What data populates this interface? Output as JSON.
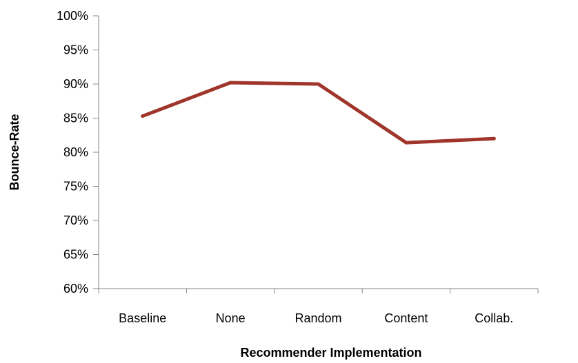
{
  "chart_data": {
    "type": "line",
    "title": "",
    "xlabel": "Recommender Implementation",
    "ylabel": "Bounce-Rate",
    "categories": [
      "Baseline",
      "None",
      "Random",
      "Content",
      "Collab."
    ],
    "series": [
      {
        "values": [
          0.853,
          0.902,
          0.9,
          0.814,
          0.82
        ],
        "color": "#A0362B"
      }
    ],
    "ylim": [
      0.6,
      1.0
    ],
    "yticks": [
      0.6,
      0.65,
      0.7,
      0.75,
      0.8,
      0.85,
      0.9,
      0.95,
      1.0
    ],
    "ytick_labels": [
      "60%",
      "65%",
      "70%",
      "75%",
      "80%",
      "85%",
      "90%",
      "95%",
      "100%"
    ],
    "grid": false,
    "legend": "none",
    "axis_color": "#868686"
  }
}
